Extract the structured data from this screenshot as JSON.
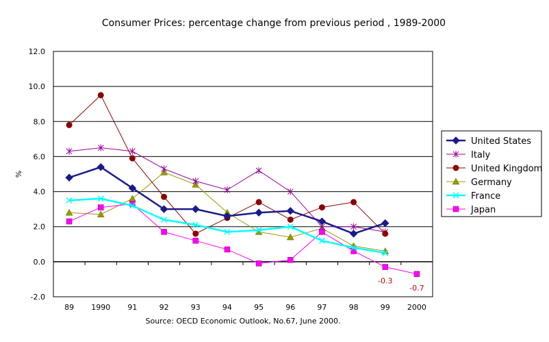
{
  "chart_data": {
    "type": "line",
    "title": "Consumer Prices: percentage change from previous period , 1989-2000",
    "ylabel": "%",
    "xlabel": "",
    "source": "Source: OECD Economic Outlook, No.67, June 2000.",
    "categories": [
      "89",
      "1990",
      "91",
      "92",
      "93",
      "94",
      "95",
      "96",
      "97",
      "98",
      "99",
      "2000"
    ],
    "y_ticks": [
      "12.0",
      "10.0",
      "8.0",
      "6.0",
      "4.0",
      "2.0",
      "0.0",
      "-2.0"
    ],
    "ylim": [
      -2,
      12
    ],
    "grid": true,
    "legend_position": "right",
    "series": [
      {
        "name": "United States",
        "color": "#1a1a8c",
        "marker": "diamond",
        "values": [
          4.8,
          5.4,
          4.2,
          3.0,
          3.0,
          2.6,
          2.8,
          2.9,
          2.3,
          1.6,
          2.2,
          null
        ]
      },
      {
        "name": "Italy",
        "color": "#990099",
        "marker": "asterisk",
        "values": [
          6.3,
          6.5,
          6.3,
          5.3,
          4.6,
          4.1,
          5.2,
          4.0,
          2.0,
          2.0,
          1.7,
          null
        ]
      },
      {
        "name": "United Kingdom",
        "color": "#8b0000",
        "marker": "circle",
        "values": [
          7.8,
          9.5,
          5.9,
          3.7,
          1.6,
          2.5,
          3.4,
          2.4,
          3.1,
          3.4,
          1.6,
          null
        ]
      },
      {
        "name": "Germany",
        "color": "#999900",
        "marker": "triangle",
        "values": [
          2.8,
          2.7,
          3.6,
          5.1,
          4.4,
          2.8,
          1.7,
          1.4,
          1.9,
          0.9,
          0.6,
          null
        ]
      },
      {
        "name": "France",
        "color": "#00ffff",
        "marker": "x",
        "values": [
          3.5,
          3.6,
          3.2,
          2.4,
          2.1,
          1.7,
          1.8,
          2.0,
          1.2,
          0.8,
          0.5,
          null
        ]
      },
      {
        "name": "Japan",
        "color": "#ff00ff",
        "marker": "square",
        "values": [
          2.3,
          3.1,
          3.3,
          1.7,
          1.2,
          0.7,
          -0.1,
          0.1,
          1.7,
          0.6,
          -0.3,
          -0.7
        ]
      }
    ],
    "data_labels": [
      {
        "category": "99",
        "value": -0.3,
        "text": "-0.3"
      },
      {
        "category": "2000",
        "value": -0.7,
        "text": "-0.7"
      }
    ]
  }
}
